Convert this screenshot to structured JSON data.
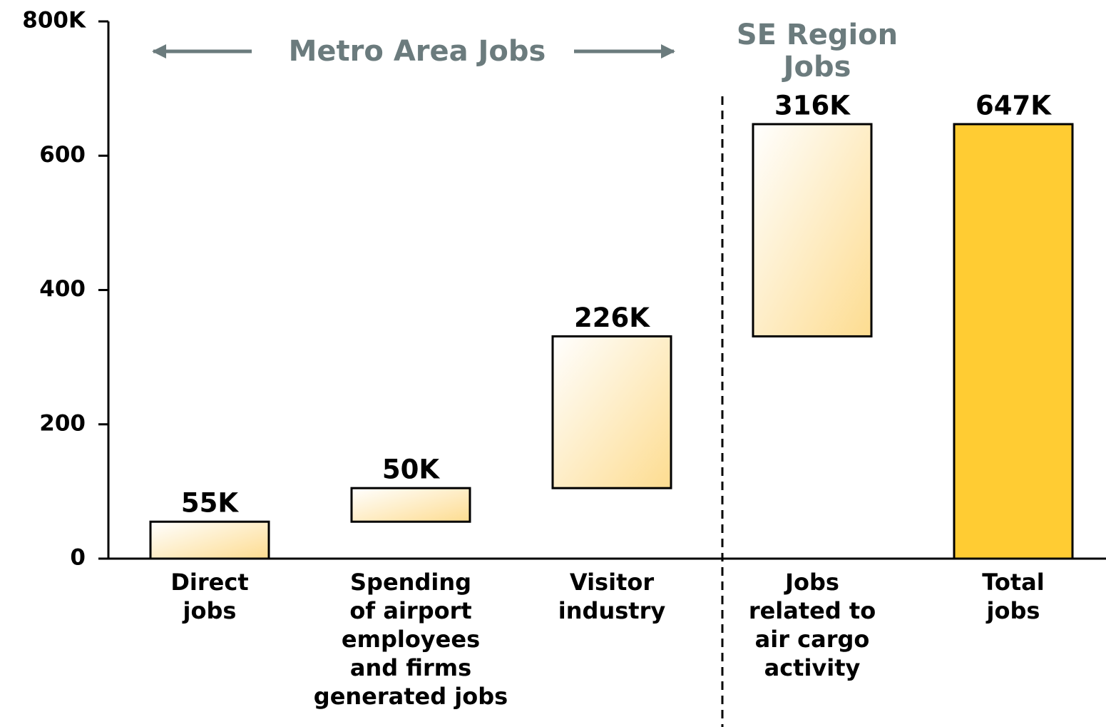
{
  "chart_data": {
    "type": "waterfall",
    "categories": [
      [
        "Direct",
        "jobs"
      ],
      [
        "Spending",
        "of airport",
        "employees",
        "and firms",
        "generated jobs"
      ],
      [
        "Visitor",
        "industry"
      ],
      [
        "Jobs",
        "related to",
        "air cargo",
        "activity"
      ],
      [
        "Total",
        "jobs"
      ]
    ],
    "values": [
      55,
      50,
      226,
      316,
      647
    ],
    "value_labels": [
      "55K",
      "50K",
      "226K",
      "316K",
      "647K"
    ],
    "color": "#fddc90",
    "total_color": "#ffcc33",
    "ylim": [
      0,
      800
    ],
    "yticks": [
      0,
      200,
      400,
      600,
      {
        "value": 800,
        "label": "800K"
      }
    ],
    "annotations": [
      "Metro Area Jobs",
      "SE Region",
      "Jobs"
    ]
  }
}
